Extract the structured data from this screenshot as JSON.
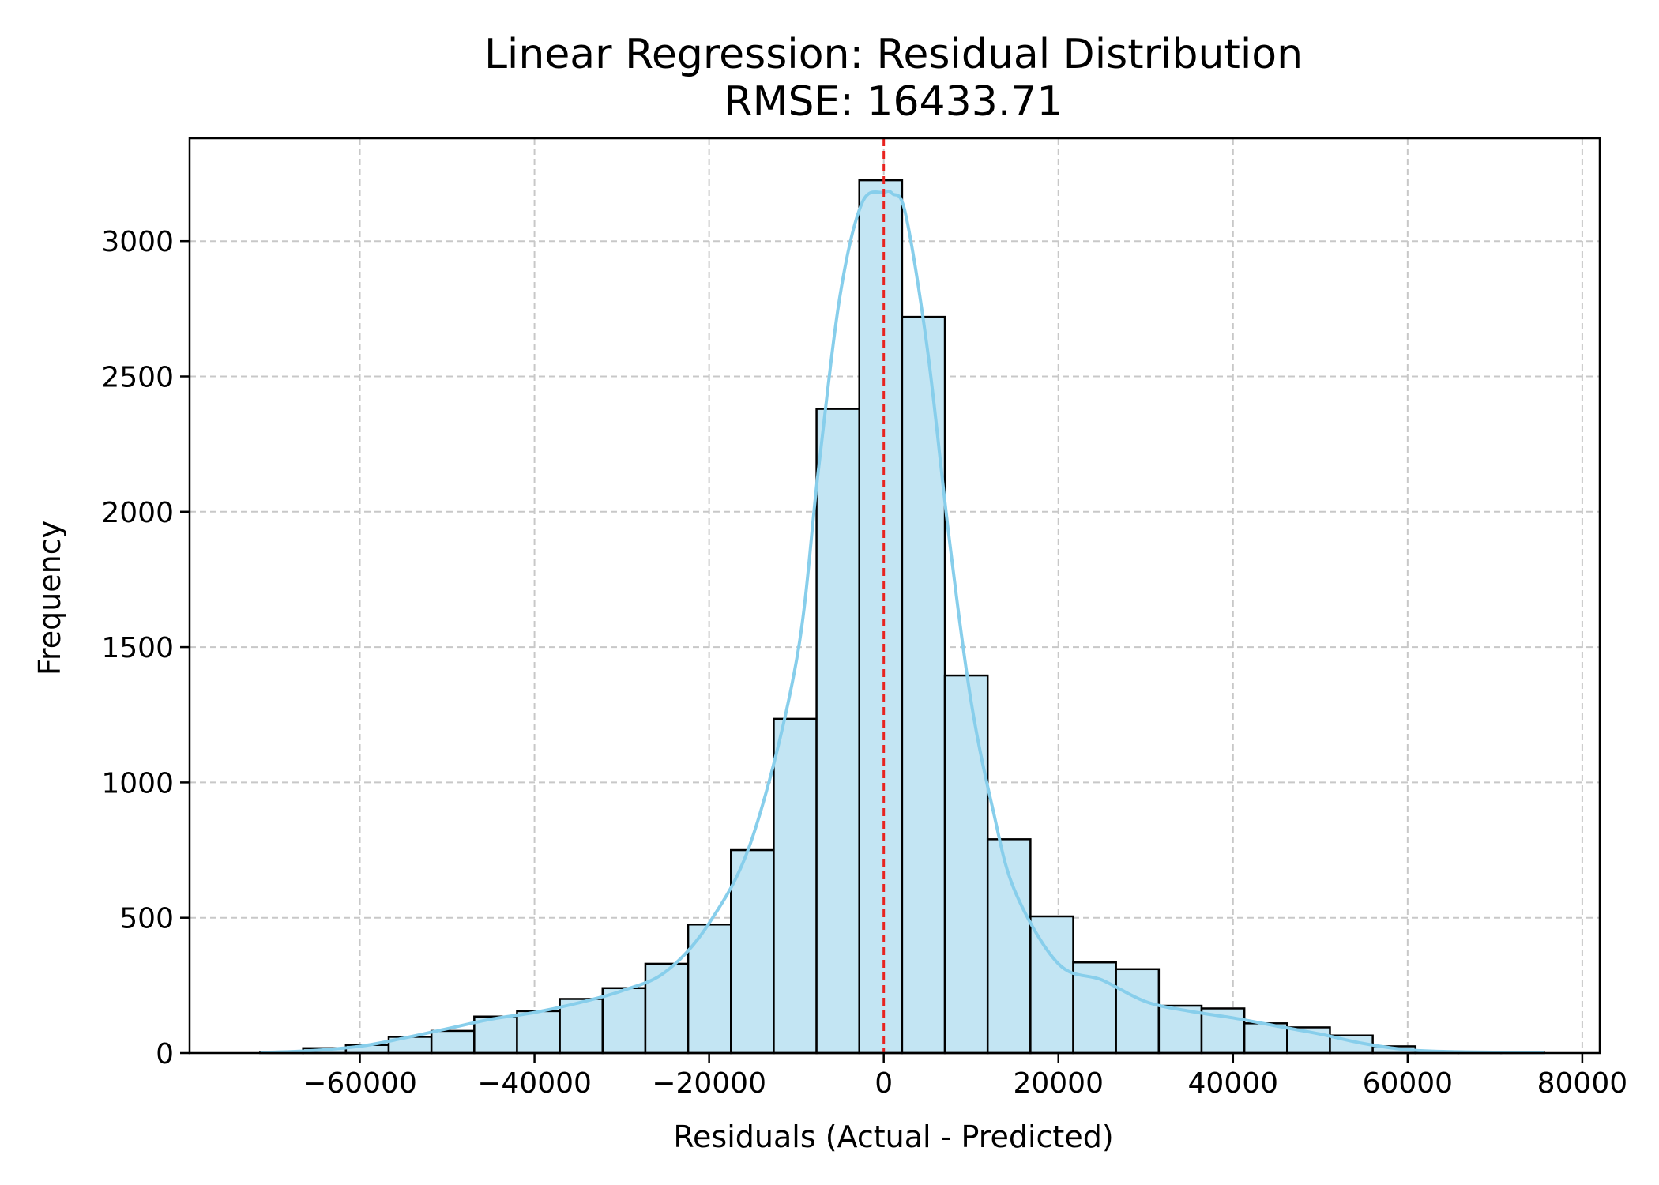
{
  "chart_data": {
    "type": "bar",
    "title": "Linear Regression: Residual Distribution",
    "subtitle": "RMSE: 16433.71",
    "xlabel": "Residuals (Actual - Predicted)",
    "ylabel": "Frequency",
    "xlim": [
      -79500,
      82000
    ],
    "ylim": [
      0,
      3380
    ],
    "grid": true,
    "xticks": [
      -60000,
      -40000,
      -20000,
      0,
      20000,
      40000,
      60000,
      80000
    ],
    "xtick_labels": [
      "−60000",
      "−40000",
      "−20000",
      "0",
      "20000",
      "40000",
      "60000",
      "80000"
    ],
    "yticks": [
      0,
      500,
      1000,
      1500,
      2000,
      2500,
      3000
    ],
    "ytick_labels": [
      "0",
      "500",
      "1000",
      "1500",
      "2000",
      "2500",
      "3000"
    ],
    "bin_edges": [
      -71400,
      -66500,
      -61600,
      -56700,
      -51800,
      -46900,
      -42000,
      -37100,
      -32200,
      -27300,
      -22400,
      -17500,
      -12600,
      -7700,
      -2800,
      2100,
      7000,
      11900,
      16800,
      21700,
      26600,
      31500,
      36400,
      41300,
      46200,
      51100,
      56000,
      60900,
      65800,
      70700,
      75600
    ],
    "counts": [
      5,
      18,
      30,
      60,
      82,
      135,
      155,
      200,
      240,
      330,
      475,
      750,
      1235,
      2380,
      3225,
      2720,
      1395,
      790,
      505,
      335,
      310,
      175,
      165,
      110,
      95,
      65,
      25,
      5,
      2,
      2
    ],
    "kde": {
      "x": [
        -71400,
        -66000,
        -60000,
        -55000,
        -50000,
        -45000,
        -40000,
        -35000,
        -30000,
        -25000,
        -20000,
        -15000,
        -10000,
        -7500,
        -5000,
        -2500,
        0,
        1000,
        2500,
        5000,
        7500,
        10000,
        12500,
        15000,
        20000,
        25000,
        30000,
        35000,
        40000,
        45000,
        50000,
        55000,
        60000,
        65000,
        70000,
        75600
      ],
      "y": [
        2,
        8,
        25,
        55,
        90,
        125,
        150,
        185,
        230,
        300,
        480,
        800,
        1450,
        2150,
        2800,
        3140,
        3180,
        3175,
        3100,
        2600,
        1900,
        1300,
        900,
        600,
        330,
        270,
        190,
        155,
        130,
        100,
        70,
        35,
        12,
        5,
        3,
        2
      ]
    },
    "mean_line": {
      "x": 0,
      "color": "#e8231f"
    },
    "colors": {
      "bar_fill": "#c3e5f3",
      "bar_edge": "#000000",
      "kde": "#87ceeb",
      "grid": "#c8c8c8"
    }
  }
}
